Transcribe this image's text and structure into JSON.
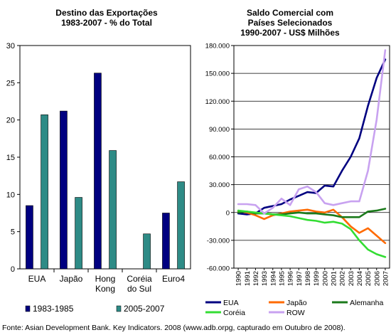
{
  "chart_data": [
    {
      "type": "bar",
      "title": [
        "Destino das Exportações",
        "1983-2007 - % do Total"
      ],
      "categories": [
        [
          "EUA"
        ],
        [
          "Japão"
        ],
        [
          "Hong",
          "Kong"
        ],
        [
          "Coréia",
          "do Sul"
        ],
        [
          "Euro4"
        ]
      ],
      "series": [
        {
          "name": "1983-1985",
          "color": "#000080",
          "values": [
            8.5,
            21.2,
            26.3,
            null,
            7.5
          ]
        },
        {
          "name": "2005-2007",
          "color": "#2E8B86",
          "values": [
            20.7,
            9.6,
            15.9,
            4.7,
            11.7
          ]
        }
      ],
      "ylim": [
        0,
        30
      ],
      "yticks": [
        "0",
        "5",
        "10",
        "15",
        "20",
        "25",
        "30"
      ],
      "grid": false,
      "legend": "bottom"
    },
    {
      "type": "line",
      "title": [
        "Saldo Comercial com",
        "Países Selecionados",
        "1990-2007 - US$ Milhões"
      ],
      "x": [
        "1990",
        "1991",
        "1992",
        "1993",
        "1994",
        "1995",
        "1996",
        "1997",
        "1998",
        "1999",
        "2000",
        "2001",
        "2002",
        "2003",
        "2004",
        "2005",
        "2006",
        "2007"
      ],
      "ylim": [
        -60000,
        180000
      ],
      "yticks": [
        "-60.000",
        "-30.000",
        "0",
        "30.000",
        "60.000",
        "90.000",
        "120.000",
        "150.000",
        "180.000"
      ],
      "grid": true,
      "legend": "bottom",
      "series": [
        {
          "name": "EUA",
          "color": "#000080",
          "values": [
            -1000,
            -2000,
            -1000,
            5000,
            7000,
            9000,
            14000,
            18000,
            22000,
            21000,
            29000,
            28000,
            45000,
            60000,
            80000,
            115000,
            145000,
            165000
          ]
        },
        {
          "name": "Japão",
          "color": "#FF6A00",
          "values": [
            1000,
            0,
            -3000,
            -7000,
            -3000,
            -1000,
            1000,
            2000,
            3000,
            1000,
            0,
            3000,
            -5000,
            -15000,
            -22000,
            -17000,
            -25000,
            -33000
          ]
        },
        {
          "name": "Alemanha",
          "color": "#1B7A1B",
          "values": [
            0,
            1000,
            -1000,
            -1000,
            -2000,
            -2000,
            -1000,
            0,
            -1000,
            -1000,
            -2000,
            -3000,
            -5000,
            -5000,
            -5000,
            1000,
            2000,
            4000
          ]
        },
        {
          "name": "Coréia",
          "color": "#33DD33",
          "values": [
            2000,
            1000,
            0,
            -1000,
            -2000,
            -3000,
            -4000,
            -6000,
            -8000,
            -9000,
            -11000,
            -10000,
            -12000,
            -18000,
            -30000,
            -40000,
            -45000,
            -48000
          ]
        },
        {
          "name": "ROW",
          "color": "#C8A2F0",
          "values": [
            9000,
            9000,
            8000,
            -1000,
            5000,
            15000,
            8000,
            25000,
            28000,
            22000,
            10000,
            8000,
            10000,
            12000,
            12000,
            45000,
            100000,
            175000
          ]
        }
      ]
    }
  ],
  "source": "Fonte: Asian Development Bank. Key Indicators. 2008 (www.adb.orpg, capturado em Outubro de 2008)."
}
